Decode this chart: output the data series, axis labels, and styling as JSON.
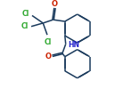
{
  "bg_color": "#ffffff",
  "bond_color": "#1a3a5c",
  "cl_color": "#2ea82e",
  "o_color": "#cc2200",
  "n_color": "#2222cc",
  "lw": 1.1,
  "dbo": 0.013,
  "figsize": [
    1.29,
    1.0
  ],
  "dpi": 100,
  "xlim": [
    0,
    129
  ],
  "ylim": [
    0,
    100
  ]
}
